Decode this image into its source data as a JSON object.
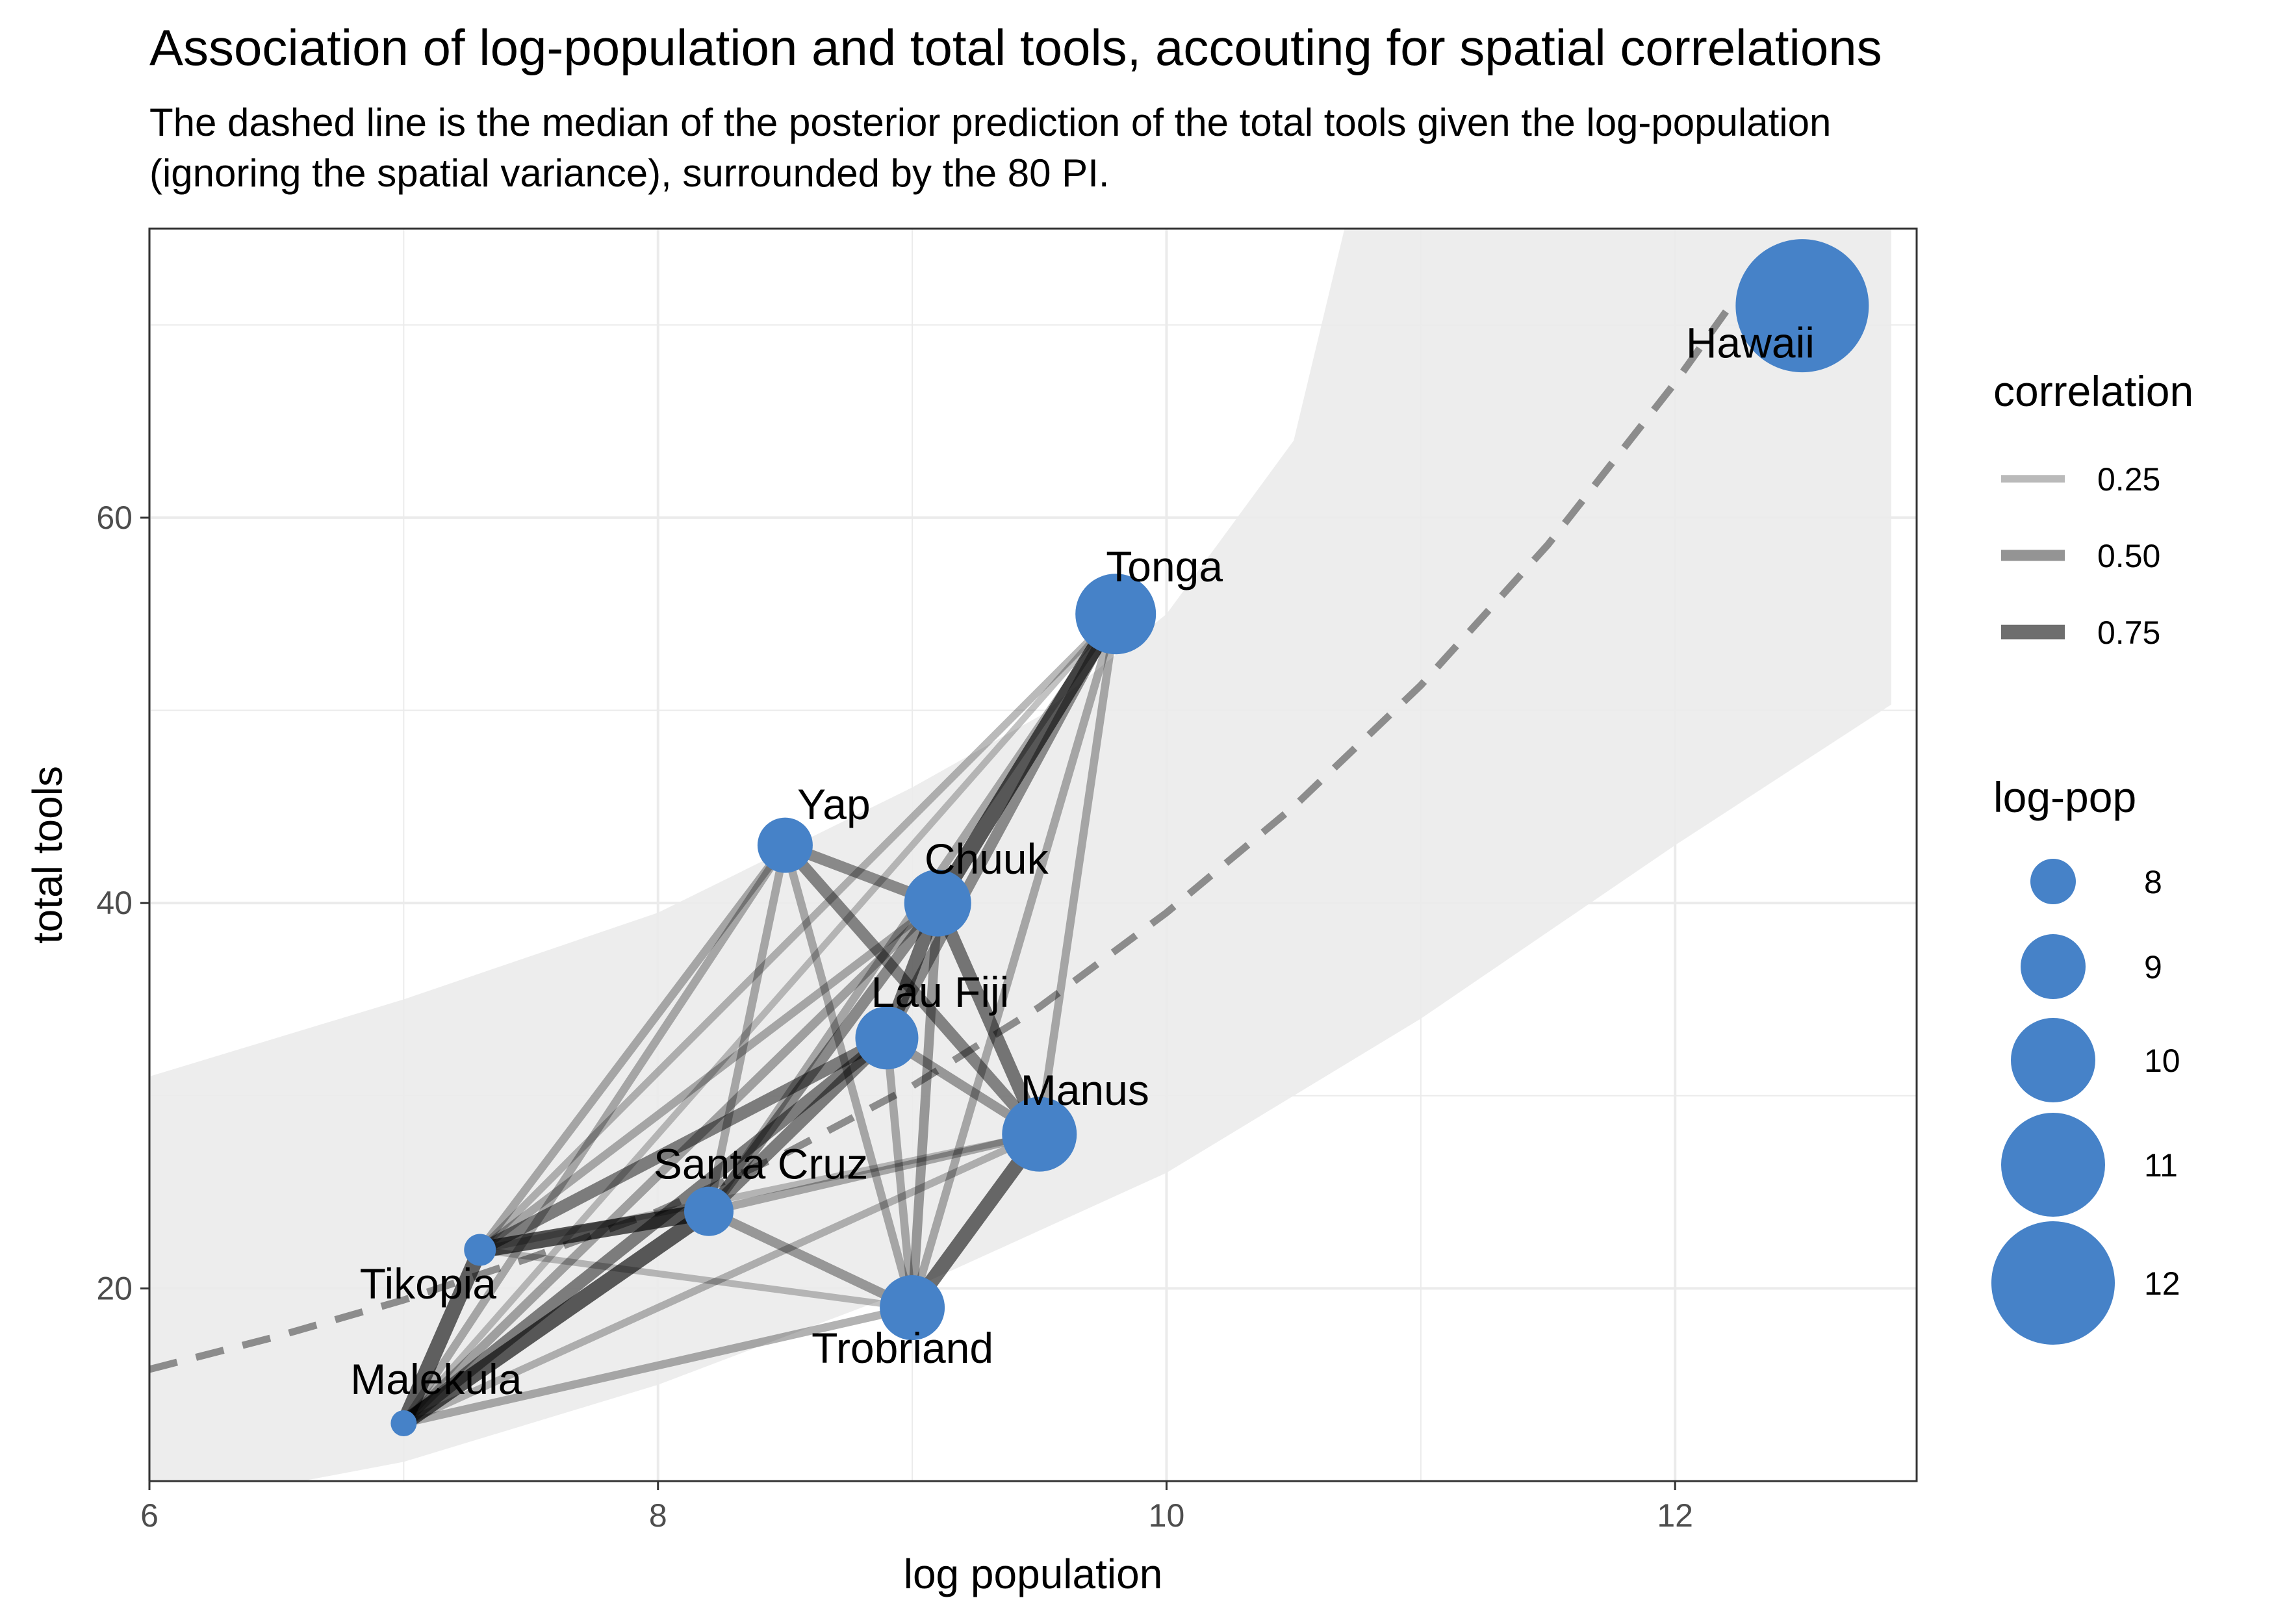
{
  "chart_data": {
    "type": "scatter",
    "title": "Association of log-population and total tools, accouting for spatial correlations",
    "subtitle": "The dashed line is the median of the posterior prediction of the total tools given the log-population\n(ignoring the spatial variance), surrounded by the 80 PI.",
    "xlabel": "log population",
    "ylabel": "total tools",
    "xlim": [
      6,
      12.95
    ],
    "ylim": [
      10,
      75
    ],
    "x_ticks": [
      6,
      8,
      10,
      12
    ],
    "y_ticks": [
      20,
      40,
      60
    ],
    "grid": true,
    "colors": {
      "points": "#4682c8",
      "band": "#ebebeb",
      "median": "#8c8c8c",
      "edge": "#000000"
    },
    "points": [
      {
        "name": "Malekula",
        "x": 7.0,
        "y": 13,
        "logpop": 7.0
      },
      {
        "name": "Tikopia",
        "x": 7.3,
        "y": 22,
        "logpop": 7.3
      },
      {
        "name": "Santa Cruz",
        "x": 8.2,
        "y": 24,
        "logpop": 8.2
      },
      {
        "name": "Yap",
        "x": 8.5,
        "y": 43,
        "logpop": 8.5
      },
      {
        "name": "Lau Fiji",
        "x": 8.9,
        "y": 33,
        "logpop": 8.9
      },
      {
        "name": "Trobriand",
        "x": 9.0,
        "y": 19,
        "logpop": 9.0
      },
      {
        "name": "Chuuk",
        "x": 9.1,
        "y": 40,
        "logpop": 9.1
      },
      {
        "name": "Manus",
        "x": 9.5,
        "y": 28,
        "logpop": 9.5
      },
      {
        "name": "Tonga",
        "x": 9.8,
        "y": 55,
        "logpop": 9.8
      },
      {
        "name": "Hawaii",
        "x": 12.5,
        "y": 71,
        "logpop": 12.5
      }
    ],
    "edges": [
      {
        "from": "Malekula",
        "to": "Tikopia",
        "correlation": 0.8
      },
      {
        "from": "Malekula",
        "to": "Santa Cruz",
        "correlation": 0.85
      },
      {
        "from": "Malekula",
        "to": "Lau Fiji",
        "correlation": 0.6
      },
      {
        "from": "Malekula",
        "to": "Trobriand",
        "correlation": 0.3
      },
      {
        "from": "Malekula",
        "to": "Manus",
        "correlation": 0.25
      },
      {
        "from": "Malekula",
        "to": "Chuuk",
        "correlation": 0.35
      },
      {
        "from": "Malekula",
        "to": "Yap",
        "correlation": 0.3
      },
      {
        "from": "Malekula",
        "to": "Tonga",
        "correlation": 0.2
      },
      {
        "from": "Tikopia",
        "to": "Santa Cruz",
        "correlation": 0.9
      },
      {
        "from": "Tikopia",
        "to": "Lau Fiji",
        "correlation": 0.6
      },
      {
        "from": "Tikopia",
        "to": "Trobriand",
        "correlation": 0.2
      },
      {
        "from": "Tikopia",
        "to": "Manus",
        "correlation": 0.2
      },
      {
        "from": "Tikopia",
        "to": "Chuuk",
        "correlation": 0.3
      },
      {
        "from": "Tikopia",
        "to": "Yap",
        "correlation": 0.3
      },
      {
        "from": "Tikopia",
        "to": "Tonga",
        "correlation": 0.25
      },
      {
        "from": "Santa Cruz",
        "to": "Lau Fiji",
        "correlation": 0.6
      },
      {
        "from": "Santa Cruz",
        "to": "Trobriand",
        "correlation": 0.4
      },
      {
        "from": "Santa Cruz",
        "to": "Manus",
        "correlation": 0.3
      },
      {
        "from": "Santa Cruz",
        "to": "Chuuk",
        "correlation": 0.5
      },
      {
        "from": "Santa Cruz",
        "to": "Yap",
        "correlation": 0.3
      },
      {
        "from": "Santa Cruz",
        "to": "Tonga",
        "correlation": 0.3
      },
      {
        "from": "Yap",
        "to": "Chuuk",
        "correlation": 0.5
      },
      {
        "from": "Yap",
        "to": "Manus",
        "correlation": 0.55
      },
      {
        "from": "Yap",
        "to": "Trobriand",
        "correlation": 0.3
      },
      {
        "from": "Lau Fiji",
        "to": "Chuuk",
        "correlation": 0.7
      },
      {
        "from": "Lau Fiji",
        "to": "Tonga",
        "correlation": 0.5
      },
      {
        "from": "Lau Fiji",
        "to": "Manus",
        "correlation": 0.4
      },
      {
        "from": "Lau Fiji",
        "to": "Trobriand",
        "correlation": 0.3
      },
      {
        "from": "Chuuk",
        "to": "Tonga",
        "correlation": 0.85
      },
      {
        "from": "Chuuk",
        "to": "Manus",
        "correlation": 0.65
      },
      {
        "from": "Chuuk",
        "to": "Trobriand",
        "correlation": 0.4
      },
      {
        "from": "Trobriand",
        "to": "Manus",
        "correlation": 0.75
      },
      {
        "from": "Trobriand",
        "to": "Tonga",
        "correlation": 0.3
      },
      {
        "from": "Manus",
        "to": "Tonga",
        "correlation": 0.3
      }
    ],
    "median_line": {
      "x": [
        6.0,
        6.5,
        7.0,
        7.5,
        8.0,
        8.5,
        9.0,
        9.5,
        10.0,
        10.5,
        11.0,
        11.5,
        12.0,
        12.2
      ],
      "y": [
        15.8,
        17.5,
        19.4,
        21.6,
        24.0,
        27.0,
        30.5,
        34.6,
        39.5,
        45.0,
        51.3,
        58.6,
        67.0,
        70.7
      ]
    },
    "band_upper": {
      "x": [
        6.0,
        7.0,
        8.0,
        9.0,
        9.5,
        10.0,
        10.5,
        10.7,
        12.85
      ],
      "y": [
        31,
        35,
        39.5,
        46,
        49.7,
        55,
        64,
        75,
        75
      ]
    },
    "band_lower": {
      "x": [
        6.0,
        7.0,
        8.0,
        9.0,
        10.0,
        11.0,
        12.0,
        12.85
      ],
      "y": [
        8.5,
        11,
        15,
        20,
        26,
        34,
        43,
        50.3
      ]
    },
    "legend_correlation": {
      "title": "correlation",
      "entries": [
        {
          "label": "0.25",
          "value": 0.25
        },
        {
          "label": "0.50",
          "value": 0.5
        },
        {
          "label": "0.75",
          "value": 0.75
        }
      ]
    },
    "legend_logpop": {
      "title": "log-pop",
      "entries": [
        {
          "label": "8",
          "value": 8
        },
        {
          "label": "9",
          "value": 9
        },
        {
          "label": "10",
          "value": 10
        },
        {
          "label": "11",
          "value": 11
        },
        {
          "label": "12",
          "value": 12
        }
      ]
    }
  }
}
